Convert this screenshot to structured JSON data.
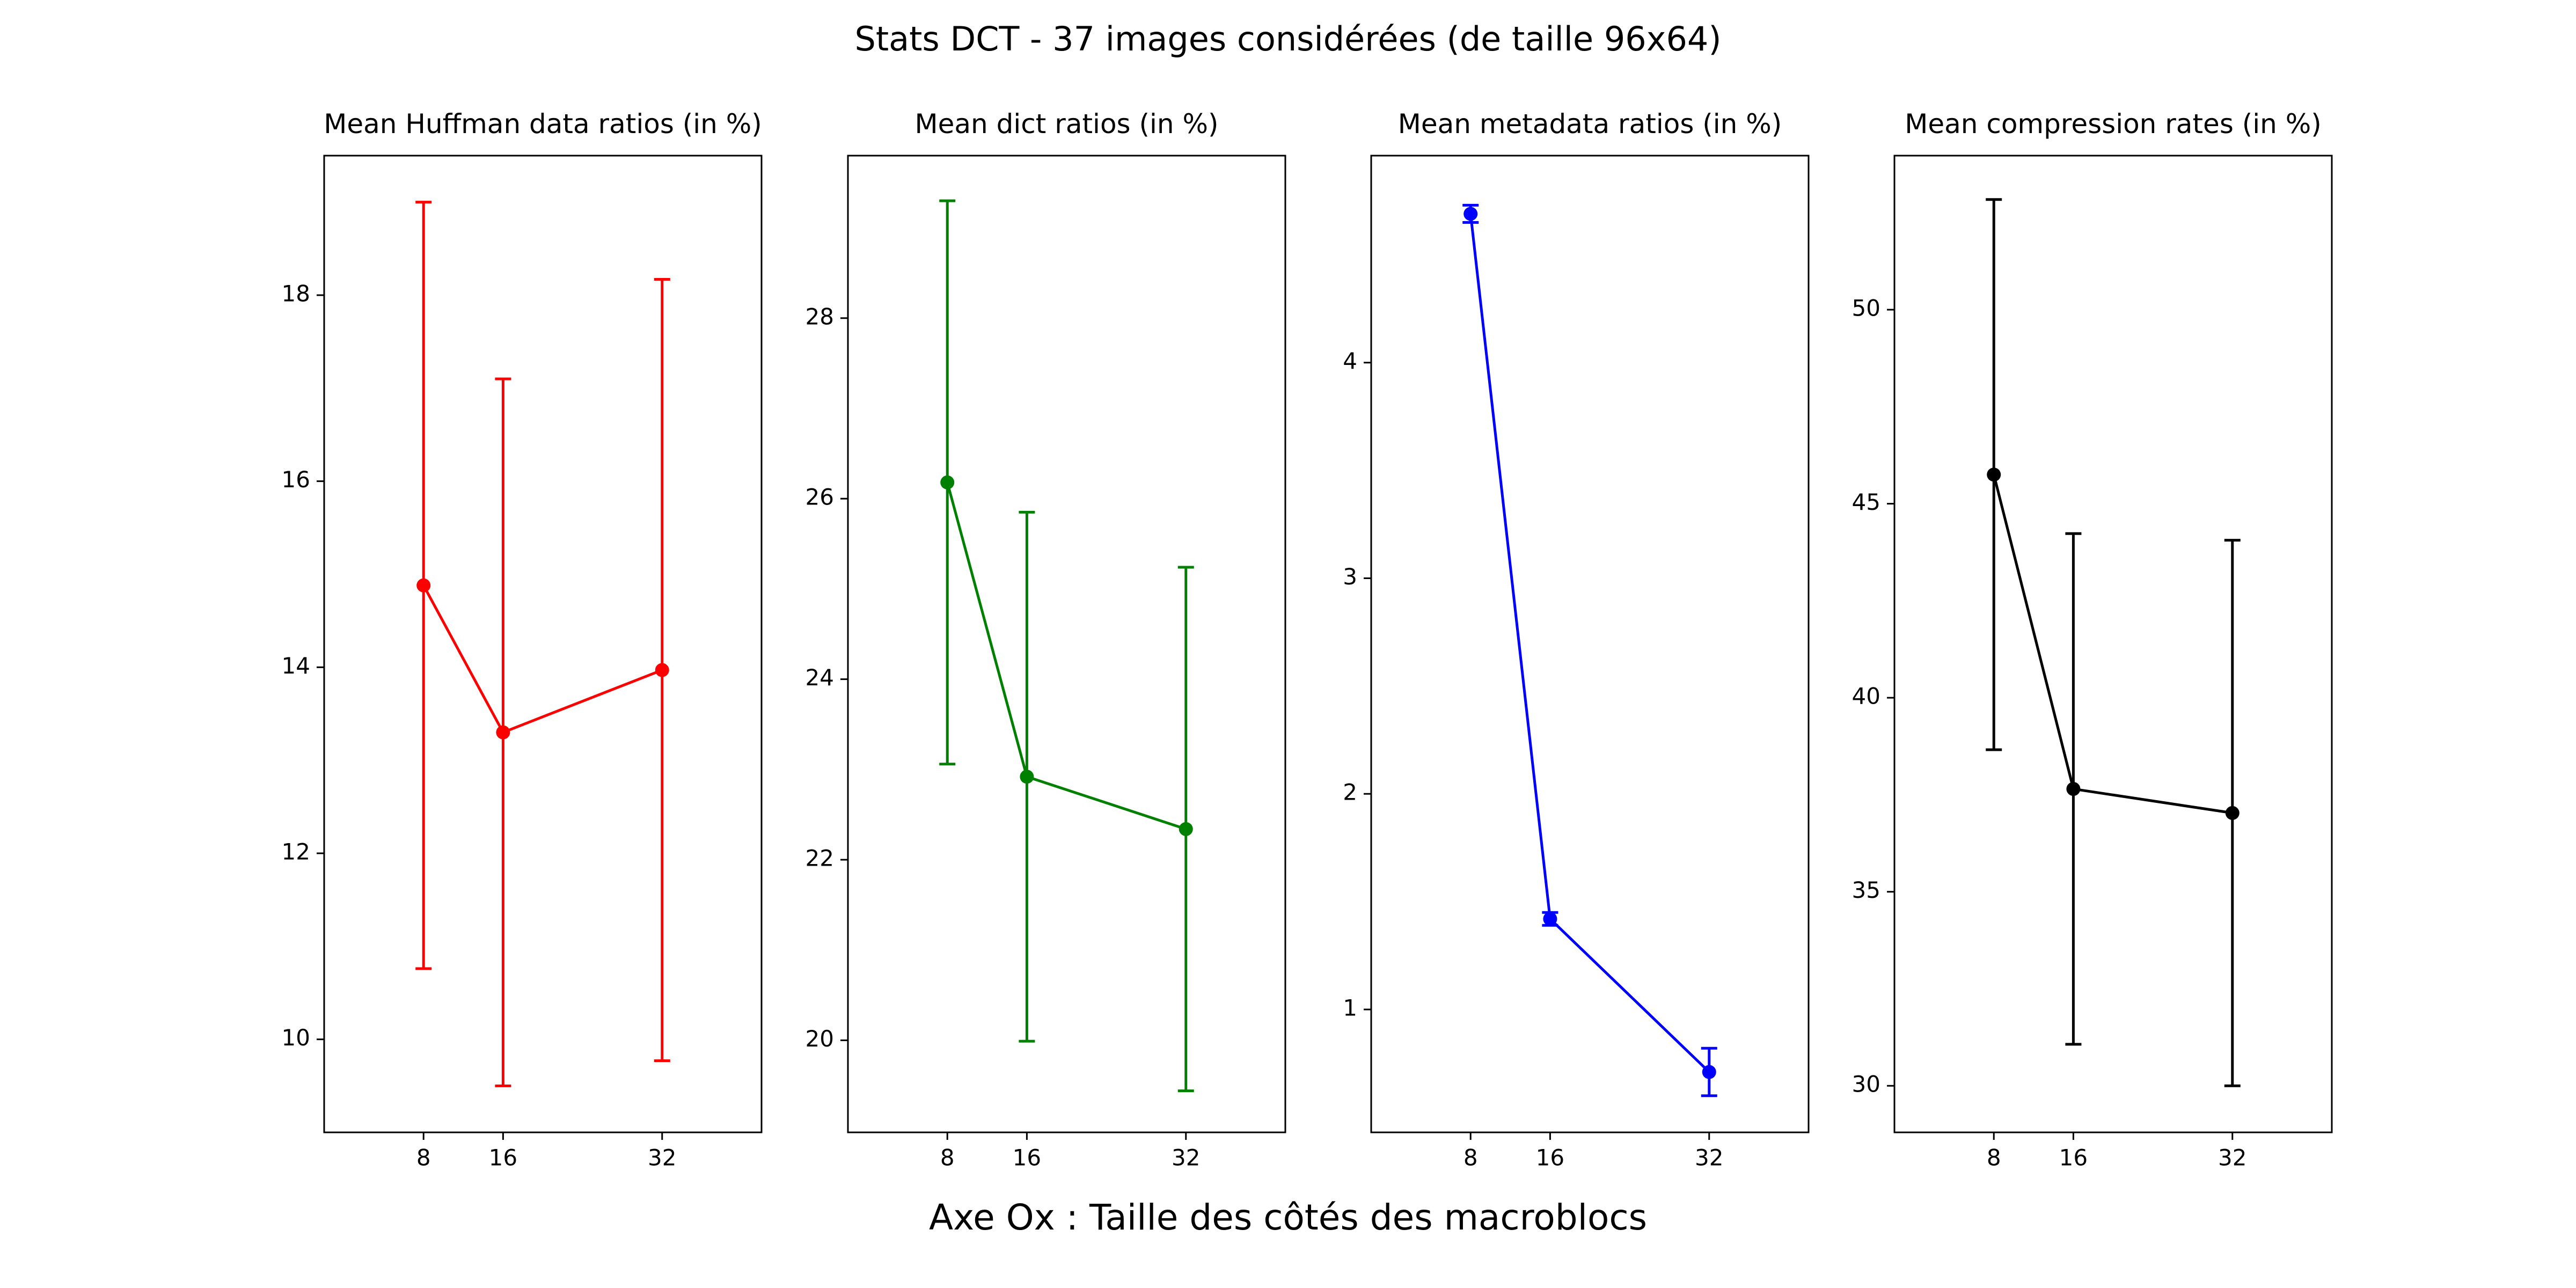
{
  "figure": {
    "suptitle": "Stats DCT - 37 images considérées (de taille 96x64)",
    "xlabel": "Axe Ox : Taille des côtés des macroblocs"
  },
  "chart_data": [
    {
      "type": "line",
      "title": "Mean Huffman data ratios (in %)",
      "color": "#ff0000",
      "x": [
        8,
        16,
        32
      ],
      "y": [
        14.88,
        13.3,
        13.97
      ],
      "yerr": [
        4.12,
        3.8,
        4.2
      ],
      "xlim": [
        -2,
        42
      ],
      "ylim": [
        9.0,
        19.5
      ],
      "xticks": [
        "8",
        "16",
        "32"
      ],
      "yticks": [
        "10",
        "12",
        "14",
        "16",
        "18"
      ],
      "ytick_values": [
        10,
        12,
        14,
        16,
        18
      ]
    },
    {
      "type": "line",
      "title": "Mean dict ratios (in %)",
      "color": "#008000",
      "x": [
        8,
        16,
        32
      ],
      "y": [
        26.18,
        22.92,
        22.34
      ],
      "yerr": [
        3.12,
        2.93,
        2.9
      ],
      "xlim": [
        -2,
        42
      ],
      "ylim": [
        18.98,
        29.8
      ],
      "xticks": [
        "8",
        "16",
        "32"
      ],
      "yticks": [
        "20",
        "22",
        "24",
        "26",
        "28"
      ],
      "ytick_values": [
        20,
        22,
        24,
        26,
        28
      ]
    },
    {
      "type": "line",
      "title": "Mean metadata ratios (in %)",
      "color": "#0000ff",
      "x": [
        8,
        16,
        32
      ],
      "y": [
        4.69,
        1.42,
        0.71
      ],
      "yerr": [
        0.04,
        0.03,
        0.11
      ],
      "xlim": [
        -2,
        42
      ],
      "ylim": [
        0.43,
        4.96
      ],
      "xticks": [
        "8",
        "16",
        "32"
      ],
      "yticks": [
        "1",
        "2",
        "3",
        "4"
      ],
      "ytick_values": [
        1,
        2,
        3,
        4
      ]
    },
    {
      "type": "line",
      "title": "Mean compression rates (in %)",
      "color": "#000000",
      "x": [
        8,
        16,
        32
      ],
      "y": [
        45.75,
        37.65,
        37.03
      ],
      "yerr": [
        7.09,
        6.58,
        7.03
      ],
      "xlim": [
        -2,
        42
      ],
      "ylim": [
        28.8,
        53.97
      ],
      "xticks": [
        "8",
        "16",
        "32"
      ],
      "yticks": [
        "30",
        "35",
        "40",
        "45",
        "50"
      ],
      "ytick_values": [
        30,
        35,
        40,
        45,
        50
      ]
    }
  ]
}
